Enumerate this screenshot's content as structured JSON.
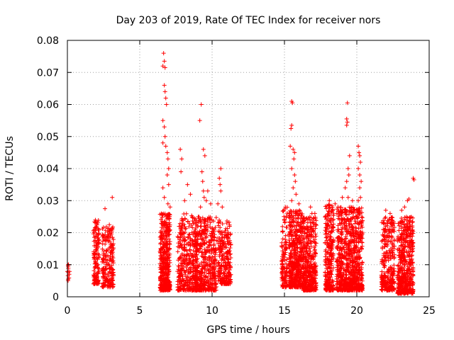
{
  "chart_data": {
    "type": "scatter",
    "title": "Day 203 of 2019, Rate Of TEC Index for receiver nors",
    "xlabel": "GPS time / hours",
    "ylabel": "ROTI / TECUs",
    "xlim": [
      0,
      25
    ],
    "ylim": [
      0,
      0.08
    ],
    "xticks": [
      0,
      5,
      10,
      15,
      20,
      25
    ],
    "xtick_labels": [
      "0",
      "5",
      "10",
      "15",
      "20",
      "25"
    ],
    "yticks": [
      0,
      0.01,
      0.02,
      0.03,
      0.04,
      0.05,
      0.06,
      0.07,
      0.08
    ],
    "ytick_labels": [
      "0",
      "0.01",
      "0.02",
      "0.03",
      "0.04",
      "0.05",
      "0.06",
      "0.07",
      "0.08"
    ],
    "grid": true,
    "marker": "+",
    "color": "#ff0000",
    "clusters": [
      {
        "x": [
          0.0,
          0.15
        ],
        "y": [
          0.004,
          0.011
        ],
        "n": 10
      },
      {
        "x": [
          1.8,
          2.2
        ],
        "y": [
          0.004,
          0.024
        ],
        "n": 140
      },
      {
        "x": [
          2.4,
          3.2
        ],
        "y": [
          0.003,
          0.022
        ],
        "n": 220
      },
      {
        "x": [
          6.4,
          7.1
        ],
        "y": [
          0.002,
          0.026
        ],
        "n": 420
      },
      {
        "x": [
          7.6,
          9.0
        ],
        "y": [
          0.002,
          0.026
        ],
        "n": 380
      },
      {
        "x": [
          8.8,
          10.3
        ],
        "y": [
          0.002,
          0.025
        ],
        "n": 450
      },
      {
        "x": [
          10.4,
          11.3
        ],
        "y": [
          0.004,
          0.024
        ],
        "n": 260
      },
      {
        "x": [
          14.8,
          15.2
        ],
        "y": [
          0.003,
          0.028
        ],
        "n": 120
      },
      {
        "x": [
          15.3,
          16.3
        ],
        "y": [
          0.003,
          0.027
        ],
        "n": 520
      },
      {
        "x": [
          16.3,
          17.2
        ],
        "y": [
          0.002,
          0.025
        ],
        "n": 420
      },
      {
        "x": [
          17.8,
          18.4
        ],
        "y": [
          0.002,
          0.029
        ],
        "n": 280
      },
      {
        "x": [
          18.6,
          20.4
        ],
        "y": [
          0.002,
          0.028
        ],
        "n": 820
      },
      {
        "x": [
          21.7,
          22.6
        ],
        "y": [
          0.002,
          0.025
        ],
        "n": 320
      },
      {
        "x": [
          22.8,
          23.9
        ],
        "y": [
          0.001,
          0.025
        ],
        "n": 520
      }
    ],
    "points": [
      [
        0.05,
        0.0095
      ],
      [
        0.05,
        0.0055
      ],
      [
        2.6,
        0.0275
      ],
      [
        2.9,
        0.0225
      ],
      [
        3.1,
        0.031
      ],
      [
        6.65,
        0.076
      ],
      [
        6.7,
        0.0735
      ],
      [
        6.6,
        0.072
      ],
      [
        6.75,
        0.0715
      ],
      [
        6.7,
        0.066
      ],
      [
        6.75,
        0.064
      ],
      [
        6.8,
        0.062
      ],
      [
        6.85,
        0.06
      ],
      [
        6.6,
        0.055
      ],
      [
        6.7,
        0.053
      ],
      [
        6.75,
        0.05
      ],
      [
        6.6,
        0.048
      ],
      [
        6.8,
        0.047
      ],
      [
        6.9,
        0.045
      ],
      [
        6.95,
        0.043
      ],
      [
        7.0,
        0.04
      ],
      [
        6.9,
        0.038
      ],
      [
        7.0,
        0.035
      ],
      [
        6.6,
        0.034
      ],
      [
        6.7,
        0.031
      ],
      [
        6.95,
        0.029
      ],
      [
        7.1,
        0.028
      ],
      [
        7.8,
        0.046
      ],
      [
        7.9,
        0.043
      ],
      [
        7.85,
        0.039
      ],
      [
        8.3,
        0.035
      ],
      [
        8.5,
        0.032
      ],
      [
        8.1,
        0.03
      ],
      [
        9.25,
        0.06
      ],
      [
        9.15,
        0.055
      ],
      [
        9.4,
        0.046
      ],
      [
        9.5,
        0.044
      ],
      [
        9.3,
        0.039
      ],
      [
        9.35,
        0.036
      ],
      [
        9.4,
        0.033
      ],
      [
        9.7,
        0.033
      ],
      [
        9.6,
        0.03
      ],
      [
        9.45,
        0.031
      ],
      [
        9.9,
        0.029
      ],
      [
        9.2,
        0.028
      ],
      [
        10.6,
        0.04
      ],
      [
        10.5,
        0.037
      ],
      [
        10.55,
        0.035
      ],
      [
        10.6,
        0.033
      ],
      [
        10.4,
        0.029
      ],
      [
        10.7,
        0.028
      ],
      [
        15.5,
        0.061
      ],
      [
        15.55,
        0.0605
      ],
      [
        15.5,
        0.0535
      ],
      [
        15.45,
        0.0525
      ],
      [
        15.4,
        0.047
      ],
      [
        15.6,
        0.046
      ],
      [
        15.7,
        0.045
      ],
      [
        15.65,
        0.043
      ],
      [
        15.5,
        0.04
      ],
      [
        15.7,
        0.038
      ],
      [
        15.75,
        0.036
      ],
      [
        15.6,
        0.034
      ],
      [
        15.8,
        0.032
      ],
      [
        15.5,
        0.03
      ],
      [
        16.0,
        0.029
      ],
      [
        16.8,
        0.028
      ],
      [
        16.9,
        0.026
      ],
      [
        17.1,
        0.026
      ],
      [
        18.1,
        0.03
      ],
      [
        18.3,
        0.027
      ],
      [
        18.5,
        0.029
      ],
      [
        18.7,
        0.028
      ],
      [
        19.35,
        0.0605
      ],
      [
        19.3,
        0.0555
      ],
      [
        19.3,
        0.0535
      ],
      [
        19.35,
        0.0545
      ],
      [
        19.5,
        0.044
      ],
      [
        19.4,
        0.04
      ],
      [
        19.45,
        0.038
      ],
      [
        19.3,
        0.036
      ],
      [
        19.2,
        0.034
      ],
      [
        19.0,
        0.031
      ],
      [
        19.4,
        0.031
      ],
      [
        19.7,
        0.03
      ],
      [
        20.1,
        0.047
      ],
      [
        20.15,
        0.045
      ],
      [
        20.2,
        0.044
      ],
      [
        20.25,
        0.042
      ],
      [
        20.1,
        0.04
      ],
      [
        20.2,
        0.038
      ],
      [
        20.3,
        0.036
      ],
      [
        20.2,
        0.034
      ],
      [
        20.25,
        0.031
      ],
      [
        20.1,
        0.03
      ],
      [
        22.0,
        0.027
      ],
      [
        22.3,
        0.026
      ],
      [
        23.1,
        0.027
      ],
      [
        23.3,
        0.028
      ],
      [
        23.5,
        0.03
      ],
      [
        23.6,
        0.0305
      ],
      [
        23.9,
        0.037
      ],
      [
        23.95,
        0.0365
      ]
    ]
  }
}
